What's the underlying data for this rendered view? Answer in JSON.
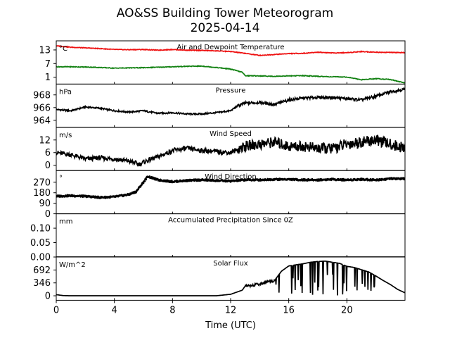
{
  "figure": {
    "title_line1": "AO&SS Building Tower Meteorogram",
    "title_line2": "2025-04-14",
    "xlabel": "Time (UTC)",
    "x_ticks": [
      0,
      4,
      8,
      12,
      16,
      20
    ],
    "xlim": [
      0,
      24
    ]
  },
  "chart_data": [
    {
      "type": "line",
      "title": "Air and Dewpoint Temperature",
      "unit": "°C",
      "ylim": [
        -2,
        17
      ],
      "y_ticks": [
        "13",
        "7",
        "1"
      ],
      "y_tick_values": [
        13,
        7,
        1
      ],
      "series": [
        {
          "color": "#ee1111",
          "points": [
            [
              0,
              14.8
            ],
            [
              1,
              14.2
            ],
            [
              2,
              13.9
            ],
            [
              3,
              13.6
            ],
            [
              4,
              13.2
            ],
            [
              5,
              13.1
            ],
            [
              6,
              13.2
            ],
            [
              7,
              12.9
            ],
            [
              8,
              13.2
            ],
            [
              9,
              12.9
            ],
            [
              10,
              12.8
            ],
            [
              11,
              12.6
            ],
            [
              12,
              12.3
            ],
            [
              13,
              11.5
            ],
            [
              14,
              10.6
            ],
            [
              15,
              11.0
            ],
            [
              16,
              11.4
            ],
            [
              17,
              11.5
            ],
            [
              18,
              12.0
            ],
            [
              19,
              11.7
            ],
            [
              20,
              11.8
            ],
            [
              21,
              12.3
            ],
            [
              22,
              12.0
            ],
            [
              23,
              11.9
            ],
            [
              24,
              11.8
            ]
          ]
        },
        {
          "color": "#108010",
          "points": [
            [
              0,
              5.6
            ],
            [
              1,
              5.6
            ],
            [
              2,
              5.5
            ],
            [
              3,
              5.3
            ],
            [
              4,
              5.0
            ],
            [
              5,
              5.1
            ],
            [
              6,
              5.2
            ],
            [
              7,
              5.4
            ],
            [
              8,
              5.6
            ],
            [
              9,
              5.8
            ],
            [
              10,
              5.9
            ],
            [
              11,
              5.3
            ],
            [
              12,
              4.6
            ],
            [
              12.8,
              3.2
            ],
            [
              13,
              1.7
            ],
            [
              14,
              1.6
            ],
            [
              15,
              1.4
            ],
            [
              16,
              1.6
            ],
            [
              17,
              1.7
            ],
            [
              18,
              1.4
            ],
            [
              19,
              1.2
            ],
            [
              20,
              1.1
            ],
            [
              21,
              -0.1
            ],
            [
              22,
              0.4
            ],
            [
              23,
              0.0
            ],
            [
              24,
              -1.5
            ]
          ]
        }
      ]
    },
    {
      "type": "line",
      "title": "Pressure",
      "unit": "hPa",
      "ylim": [
        962.9,
        969.7
      ],
      "y_ticks": [
        "968",
        "966",
        "964"
      ],
      "y_tick_values": [
        968,
        966,
        964
      ],
      "series": [
        {
          "color": "#000000",
          "points": [
            [
              0,
              965.7
            ],
            [
              1,
              965.5
            ],
            [
              2,
              966.1
            ],
            [
              3,
              965.9
            ],
            [
              4,
              965.5
            ],
            [
              5,
              965.3
            ],
            [
              6,
              965.5
            ],
            [
              7,
              965.1
            ],
            [
              8,
              965.2
            ],
            [
              9,
              965.0
            ],
            [
              10,
              965.0
            ],
            [
              11,
              965.2
            ],
            [
              12,
              965.5
            ],
            [
              12.5,
              966.3
            ],
            [
              13,
              966.7
            ],
            [
              14,
              966.8
            ],
            [
              15,
              966.5
            ],
            [
              16,
              967.2
            ],
            [
              17,
              967.5
            ],
            [
              18,
              967.6
            ],
            [
              19,
              967.6
            ],
            [
              20,
              967.4
            ],
            [
              21,
              967.2
            ],
            [
              22,
              967.8
            ],
            [
              23,
              968.5
            ],
            [
              24,
              968.9
            ]
          ]
        }
      ]
    },
    {
      "type": "line",
      "title": "Wind Speed",
      "unit": "m/s",
      "ylim": [
        -2.5,
        18
      ],
      "y_ticks": [
        "12",
        "6",
        "0"
      ],
      "y_tick_values": [
        12,
        6,
        0
      ],
      "series": [
        {
          "color": "#000000",
          "points": [
            [
              0,
              6
            ],
            [
              1,
              5
            ],
            [
              2,
              3
            ],
            [
              3,
              3.5
            ],
            [
              4,
              3
            ],
            [
              5,
              2
            ],
            [
              5.5,
              1
            ],
            [
              5.8,
              0.5
            ],
            [
              6,
              1.5
            ],
            [
              7,
              4
            ],
            [
              8,
              7
            ],
            [
              9,
              8
            ],
            [
              10,
              7
            ],
            [
              11,
              6.5
            ],
            [
              12,
              6
            ],
            [
              13,
              9
            ],
            [
              14,
              10
            ],
            [
              15,
              11
            ],
            [
              16,
              9
            ],
            [
              17,
              9
            ],
            [
              18,
              8
            ],
            [
              19,
              8
            ],
            [
              20,
              10
            ],
            [
              21,
              11
            ],
            [
              22,
              12
            ],
            [
              23,
              10
            ],
            [
              24,
              8
            ]
          ]
        }
      ]
    },
    {
      "type": "scatter",
      "title": "Wind Direction",
      "unit": "°",
      "ylim": [
        0,
        370
      ],
      "y_ticks": [
        "270",
        "180",
        "90",
        "0"
      ],
      "y_tick_values": [
        270,
        180,
        90,
        0
      ],
      "series": [
        {
          "color": "#000000",
          "points": [
            [
              0,
              150
            ],
            [
              1,
              155
            ],
            [
              2,
              150
            ],
            [
              3,
              140
            ],
            [
              4,
              145
            ],
            [
              5,
              165
            ],
            [
              5.5,
              190
            ],
            [
              6,
              270
            ],
            [
              6.3,
              320
            ],
            [
              7,
              290
            ],
            [
              8,
              275
            ],
            [
              9,
              285
            ],
            [
              10,
              290
            ],
            [
              11,
              285
            ],
            [
              12,
              280
            ],
            [
              13,
              290
            ],
            [
              14,
              290
            ],
            [
              15,
              295
            ],
            [
              16,
              295
            ],
            [
              17,
              290
            ],
            [
              18,
              290
            ],
            [
              19,
              295
            ],
            [
              20,
              290
            ],
            [
              21,
              295
            ],
            [
              22,
              290
            ],
            [
              23,
              300
            ],
            [
              24,
              300
            ]
          ]
        }
      ]
    },
    {
      "type": "line",
      "title": "Accumulated Precipitation Since 0Z",
      "unit": "mm",
      "ylim": [
        0,
        0.15
      ],
      "y_ticks": [
        "0.10",
        "0.05",
        "0.00"
      ],
      "y_tick_values": [
        0.1,
        0.05,
        0.0
      ],
      "series": [
        {
          "color": "#000000",
          "points": [
            [
              0,
              0
            ],
            [
              24,
              0
            ]
          ]
        }
      ]
    },
    {
      "type": "line",
      "title": "Solar Flux",
      "unit": "W/m^2",
      "ylim": [
        -120,
        1040
      ],
      "y_ticks": [
        "692",
        "346",
        "0"
      ],
      "y_tick_values": [
        692,
        346,
        0
      ],
      "series": [
        {
          "color": "#000000",
          "points": [
            [
              0,
              30
            ],
            [
              0.5,
              5
            ],
            [
              1,
              0
            ],
            [
              6,
              0
            ],
            [
              11,
              0
            ],
            [
              12,
              40
            ],
            [
              12.8,
              150
            ],
            [
              13,
              260
            ],
            [
              14,
              310
            ],
            [
              14.5,
              380
            ],
            [
              15,
              400
            ],
            [
              15.5,
              660
            ],
            [
              16,
              800
            ],
            [
              16.5,
              830
            ],
            [
              17,
              860
            ],
            [
              17.5,
              900
            ],
            [
              18,
              920
            ],
            [
              18.5,
              930
            ],
            [
              19,
              900
            ],
            [
              19.5,
              870
            ],
            [
              20,
              790
            ],
            [
              20.5,
              760
            ],
            [
              21,
              700
            ],
            [
              21.5,
              640
            ],
            [
              22,
              530
            ],
            [
              22.5,
              410
            ],
            [
              23,
              300
            ],
            [
              23.5,
              170
            ],
            [
              24,
              80
            ]
          ]
        }
      ]
    }
  ]
}
